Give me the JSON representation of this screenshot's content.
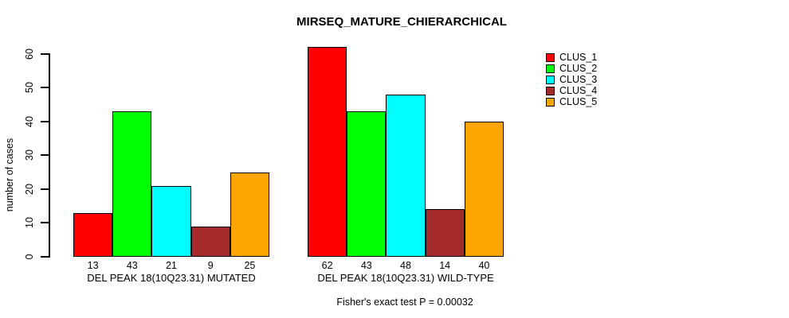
{
  "chart_data": {
    "type": "bar",
    "title": "MIRSEQ_MATURE_CHIERARCHICAL",
    "ylabel": "number of cases",
    "xlabel": "",
    "ylim": [
      0,
      60
    ],
    "yticks": [
      0,
      10,
      20,
      30,
      40,
      50,
      60
    ],
    "grid": false,
    "legend_position": "right",
    "categories": [
      "DEL PEAK 18(10Q23.31) MUTATED",
      "DEL PEAK 18(10Q23.31) WILD-TYPE"
    ],
    "series": [
      {
        "name": "CLUS_1",
        "color": "#FF0000",
        "values": [
          13,
          62
        ]
      },
      {
        "name": "CLUS_2",
        "color": "#00FF00",
        "values": [
          43,
          43
        ]
      },
      {
        "name": "CLUS_3",
        "color": "#00FFFF",
        "values": [
          21,
          48
        ]
      },
      {
        "name": "CLUS_4",
        "color": "#A52A2A",
        "values": [
          9,
          14
        ]
      },
      {
        "name": "CLUS_5",
        "color": "#FFA500",
        "values": [
          25,
          40
        ]
      }
    ],
    "bar_value_labels_shown": true,
    "caption": "Fisher's exact test P = 0.00032"
  },
  "colors": {
    "background": "#FFFFFF",
    "axis": "#000000",
    "text": "#000000"
  }
}
